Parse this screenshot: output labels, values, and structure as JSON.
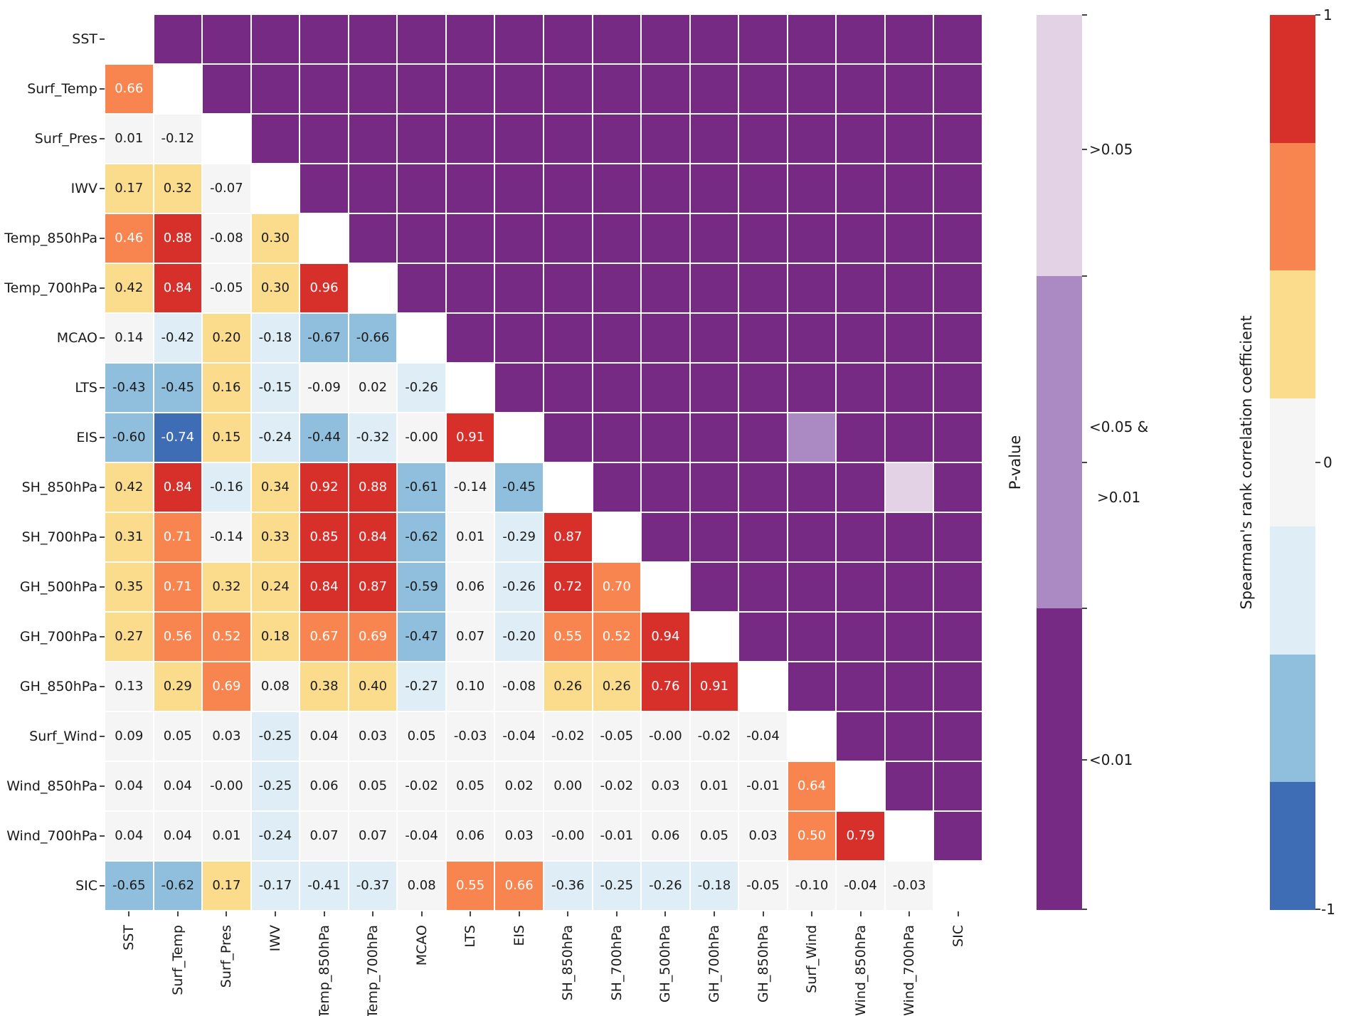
{
  "chart_data": {
    "type": "heatmap",
    "title": "",
    "description": "Lower triangle: Spearman's rank correlation coefficients (value printed in each cell). Upper triangle: p-value category cells. Diagonal blank.",
    "variables": [
      "SST",
      "Surf_Temp",
      "Surf_Pres",
      "IWV",
      "Temp_850hPa",
      "Temp_700hPa",
      "MCAO",
      "LTS",
      "EIS",
      "SH_850hPa",
      "SH_700hPa",
      "GH_500hPa",
      "GH_700hPa",
      "GH_850hPa",
      "Surf_Wind",
      "Wind_850hPa",
      "Wind_700hPa",
      "SIC"
    ],
    "lower_triangle_values": [
      [
        "0.66"
      ],
      [
        "0.01",
        "-0.12"
      ],
      [
        "0.17",
        "0.32",
        "-0.07"
      ],
      [
        "0.46",
        "0.88",
        "-0.08",
        "0.30"
      ],
      [
        "0.42",
        "0.84",
        "-0.05",
        "0.30",
        "0.96"
      ],
      [
        "0.14",
        "-0.42",
        "0.20",
        "-0.18",
        "-0.67",
        "-0.66"
      ],
      [
        "-0.43",
        "-0.45",
        "0.16",
        "-0.15",
        "-0.09",
        "0.02",
        "-0.26"
      ],
      [
        "-0.60",
        "-0.74",
        "0.15",
        "-0.24",
        "-0.44",
        "-0.32",
        "-0.00",
        "0.91"
      ],
      [
        "0.42",
        "0.84",
        "-0.16",
        "0.34",
        "0.92",
        "0.88",
        "-0.61",
        "-0.14",
        "-0.45"
      ],
      [
        "0.31",
        "0.71",
        "-0.14",
        "0.33",
        "0.85",
        "0.84",
        "-0.62",
        "0.01",
        "-0.29",
        "0.87"
      ],
      [
        "0.35",
        "0.71",
        "0.32",
        "0.24",
        "0.84",
        "0.87",
        "-0.59",
        "0.06",
        "-0.26",
        "0.72",
        "0.70"
      ],
      [
        "0.27",
        "0.56",
        "0.52",
        "0.18",
        "0.67",
        "0.69",
        "-0.47",
        "0.07",
        "-0.20",
        "0.55",
        "0.52",
        "0.94"
      ],
      [
        "0.13",
        "0.29",
        "0.69",
        "0.08",
        "0.38",
        "0.40",
        "-0.27",
        "0.10",
        "-0.08",
        "0.26",
        "0.26",
        "0.76",
        "0.91"
      ],
      [
        "0.09",
        "0.05",
        "0.03",
        "-0.25",
        "0.04",
        "0.03",
        "0.05",
        "-0.03",
        "-0.04",
        "-0.02",
        "-0.05",
        "-0.00",
        "-0.02",
        "-0.04"
      ],
      [
        "0.04",
        "0.04",
        "-0.00",
        "-0.25",
        "0.06",
        "0.05",
        "-0.02",
        "0.05",
        "0.02",
        "0.00",
        "-0.02",
        "0.03",
        "0.01",
        "-0.01",
        "0.64"
      ],
      [
        "0.04",
        "0.04",
        "0.01",
        "-0.24",
        "0.07",
        "0.07",
        "-0.04",
        "0.06",
        "0.03",
        "-0.00",
        "-0.01",
        "0.06",
        "0.05",
        "0.03",
        "0.50",
        "0.79"
      ],
      [
        "-0.65",
        "-0.62",
        "0.17",
        "-0.17",
        "-0.41",
        "-0.37",
        "0.08",
        "0.55",
        "0.66",
        "-0.36",
        "-0.25",
        "-0.26",
        "-0.18",
        "-0.05",
        "-0.10",
        "-0.04",
        "-0.03"
      ]
    ],
    "upper_triangle_default_p_class": "<0.01",
    "pvalue_exceptions": [
      {
        "row": "EIS",
        "col": "Surf_Wind",
        "p_class": "<0.05 & >0.01"
      },
      {
        "row": "SH_850hPa",
        "col": "Wind_700hPa",
        "p_class": ">0.05"
      }
    ],
    "legend_position": "right"
  },
  "colors": {
    "correlation_palette": {
      "strong_pos": "#D7302B",
      "moderate_pos": "#F8854F",
      "weak_pos": "#FBDC8C",
      "near_zero": "#F5F5F5",
      "weak_neg": "#DFEEF6",
      "moderate_neg": "#8FBFDC",
      "strong_neg": "#3E6DB5"
    },
    "pvalue_palette": {
      "lt_0_01": "#762A83",
      "between_0_01_and_0_05": "#AB8AC3",
      "gt_0_05": "#E3D2E6"
    },
    "diagonal": "#FFFFFF",
    "cell_text_dark": "#1a1a1a",
    "cell_text_light": "#ffffff"
  },
  "pvalue_colorbar": {
    "title": "P-value",
    "label_top": ">0.05",
    "label_mid_line1": "<0.05 &",
    "label_mid_line2": ">0.01",
    "label_bottom": "<0.01"
  },
  "corr_colorbar": {
    "title": "Spearman's rank correlation coefficient",
    "tick_top": "1",
    "tick_mid": "0",
    "tick_bottom": "-1"
  }
}
